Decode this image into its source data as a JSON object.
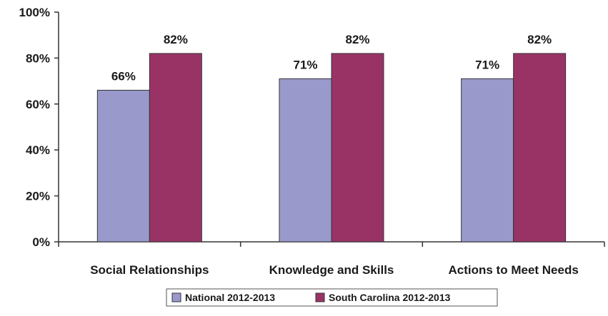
{
  "chart_data": {
    "type": "bar",
    "categories": [
      "Social Relationships",
      "Knowledge and Skills",
      "Actions to Meet Needs"
    ],
    "series": [
      {
        "name": "National 2012-2013",
        "values": [
          66,
          71,
          71
        ],
        "labels": [
          "66%",
          "71%",
          "71%"
        ],
        "color": "#9999cc"
      },
      {
        "name": "South Carolina 2012-2013",
        "values": [
          82,
          82,
          82
        ],
        "labels": [
          "82%",
          "82%",
          "82%"
        ],
        "color": "#993366"
      }
    ],
    "ylim": [
      0,
      100
    ],
    "yticks": [
      0,
      20,
      40,
      60,
      80,
      100
    ],
    "ytick_labels": [
      "0%",
      "20%",
      "40%",
      "60%",
      "80%",
      "100%"
    ],
    "grid": false,
    "legend_position": "bottom"
  }
}
